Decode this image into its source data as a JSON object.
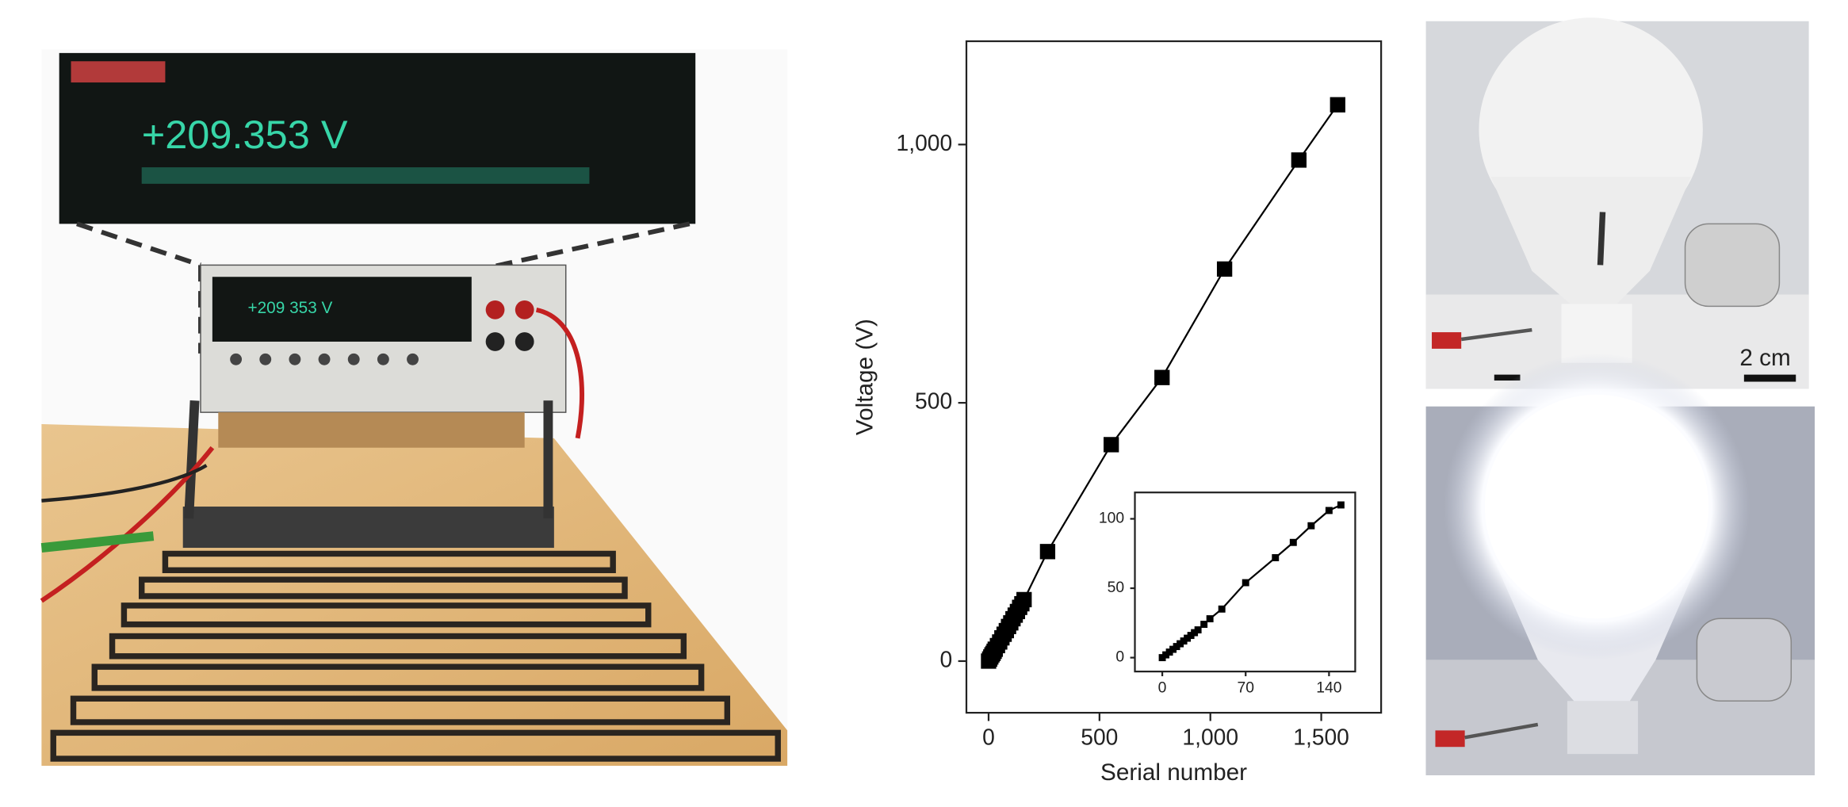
{
  "photos": {
    "meter_reading": "+209.353 V",
    "scale_bar": "2 cm"
  },
  "chart_data": [
    {
      "type": "line",
      "xlabel": "Serial number",
      "ylabel": "Voltage (V)",
      "color": "#000000",
      "x": [
        0,
        5,
        10,
        15,
        20,
        25,
        30,
        40,
        50,
        60,
        70,
        80,
        90,
        100,
        110,
        120,
        130,
        140,
        150,
        160,
        266,
        553,
        782,
        1064,
        1399,
        1574
      ],
      "values": [
        0,
        4,
        8,
        12,
        15,
        19,
        23,
        30,
        37,
        45,
        52,
        59,
        67,
        74,
        82,
        89,
        96,
        104,
        111,
        119,
        212,
        419,
        549,
        759,
        970,
        1077
      ],
      "xlim": [
        -100,
        1770
      ],
      "ylim": [
        -100,
        1200
      ],
      "xticks": [
        0,
        500,
        {
          "value": 1000,
          "label": "1,000"
        },
        {
          "value": 1500,
          "label": "1,500"
        }
      ],
      "yticks": [
        0,
        500,
        {
          "value": 1000,
          "label": "1,000"
        }
      ]
    },
    {
      "type": "line",
      "color": "#000000",
      "x": [
        0,
        3,
        6,
        9,
        12,
        15,
        18,
        21,
        24,
        27,
        30,
        35,
        40,
        50,
        70,
        95,
        110,
        125,
        140,
        150
      ],
      "values": [
        0,
        2,
        4,
        6,
        8,
        10,
        12,
        14,
        16,
        18,
        20,
        24,
        28,
        35,
        54,
        72,
        83,
        95,
        106,
        110
      ],
      "xlim": [
        -23,
        162
      ],
      "ylim": [
        -10,
        119
      ],
      "xticks": [
        0,
        70,
        140
      ],
      "yticks": [
        0,
        50,
        100
      ]
    }
  ]
}
